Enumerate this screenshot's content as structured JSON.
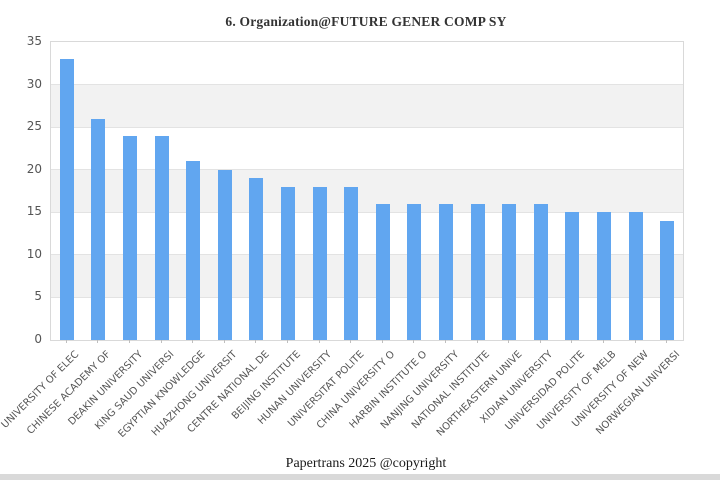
{
  "page": {
    "background": "#ffffff",
    "footer_text": "Papertrans 2025 @copyright",
    "bottom_strip_color": "#d9d9d9"
  },
  "chart_data": {
    "type": "bar",
    "title": "6. Organization@FUTURE GENER COMP SY",
    "categories": [
      "UNIVERSITY OF ELEC",
      "CHINESE ACADEMY OF",
      "DEAKIN UNIVERSITY",
      "KING SAUD UNIVERSI",
      "EGYPTIAN KNOWLEDGE",
      "HUAZHONG UNIVERSIT",
      "CENTRE NATIONAL DE",
      "BEIJING INSTITUTE",
      "HUNAN UNIVERSITY",
      "UNIVERSITAT POLITE",
      "CHINA UNIVERSITY O",
      "HARBIN INSTITUTE O",
      "NANJING UNIVERSITY",
      "NATIONAL INSTITUTE",
      "NORTHEASTERN UNIVE",
      "XIDIAN UNIVERSITY",
      "UNIVERSIDAD POLITE",
      "UNIVERSITY OF MELB",
      "UNIVERSITY OF NEW",
      "NORWEGIAN UNIVERSI"
    ],
    "values": [
      33,
      26,
      24,
      24,
      21,
      20,
      19,
      18,
      18,
      18,
      16,
      16,
      16,
      16,
      16,
      16,
      15,
      15,
      15,
      14
    ],
    "xlabel": "",
    "ylabel": "",
    "ylim": [
      0,
      35
    ],
    "yticks": [
      0,
      5,
      10,
      15,
      20,
      25,
      30,
      35
    ],
    "gray_bands": [
      [
        25,
        30
      ],
      [
        15,
        20
      ],
      [
        5,
        10
      ]
    ],
    "x_tick_rotation_deg": 45,
    "legend": "none",
    "colors": {
      "bar": "#61a6f0",
      "band": "#f2f2f2",
      "gridline": "#e3e3e3",
      "axis_border": "#d9d9d9",
      "tick_label": "#555555",
      "title": "#333333"
    }
  }
}
